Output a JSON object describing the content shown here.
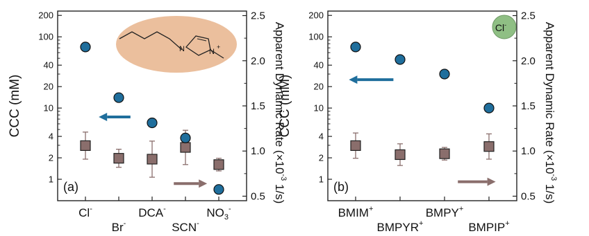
{
  "colors": {
    "ccc_fill": "#1f6e9c",
    "rate_fill": "#8a6e6c",
    "ccc_arrow": "#1f6e9c",
    "rate_arrow": "#8a6e6c",
    "inset_cation": "#e8b48c",
    "inset_anion": "#8fbf84"
  },
  "chart_data": [
    {
      "type": "scatter",
      "panel_label": "(a)",
      "categories": [
        {
          "base": "Cl",
          "sup": "-",
          "sub": ""
        },
        {
          "base": "Br",
          "sup": "-",
          "sub": ""
        },
        {
          "base": "DCA",
          "sup": "-",
          "sub": ""
        },
        {
          "base": "SCN",
          "sup": "-",
          "sub": ""
        },
        {
          "base": "NO",
          "sup": "-",
          "sub": "3"
        }
      ],
      "label_rows": [
        0,
        1,
        0,
        1,
        0
      ],
      "ylabel_left": "CCC (mM)",
      "ylabel_right": {
        "base": "Apparent Dynamic Rate (×10",
        "sup": "-3",
        "tail": " 1/s)"
      },
      "left_axis": {
        "scale": "log",
        "ylim": [
          0.5,
          230
        ],
        "ticks": [
          1,
          2,
          4,
          10,
          20,
          40,
          100,
          200
        ],
        "tick_labels": [
          "1",
          "2",
          "4",
          "10",
          "20",
          "40",
          "100",
          "200"
        ]
      },
      "right_axis": {
        "scale": "linear",
        "ylim": [
          0.45,
          2.55
        ],
        "ticks": [
          0.5,
          1.0,
          1.5,
          2.0,
          2.5
        ],
        "tick_labels": [
          "0.5",
          "1.0",
          "1.5",
          "2.0",
          "2.5"
        ]
      },
      "series": [
        {
          "marker": "circle",
          "axis": "left",
          "values": [
            72,
            14,
            6.2,
            3.8,
            0.72
          ]
        },
        {
          "marker": "square",
          "axis": "right",
          "values": [
            1.06,
            0.92,
            0.91,
            1.04,
            0.85
          ],
          "error": [
            0.15,
            0.1,
            0.2,
            0.19,
            0.07
          ]
        }
      ],
      "arrows": [
        {
          "axis": "left",
          "direction": "left",
          "value": 7.5,
          "x_from": 1.35,
          "x_to": 0.4
        },
        {
          "axis": "right",
          "direction": "right",
          "value": 0.64,
          "x_from": 2.65,
          "x_to": 3.65
        }
      ],
      "inset": {
        "type": "cation"
      }
    },
    {
      "type": "scatter",
      "panel_label": "(b)",
      "categories": [
        {
          "base": "BMIM",
          "sup": "+",
          "sub": ""
        },
        {
          "base": "BMPYR",
          "sup": "+",
          "sub": ""
        },
        {
          "base": "BMPY",
          "sup": "+",
          "sub": ""
        },
        {
          "base": "BMPIP",
          "sup": "+",
          "sub": ""
        }
      ],
      "label_rows": [
        0,
        1,
        0,
        1
      ],
      "ylabel_left": "CCC (mM)",
      "ylabel_right": {
        "base": "Apparent Dynamic Rate (×10",
        "sup": "-3",
        "tail": " 1/s)"
      },
      "left_axis": {
        "scale": "log",
        "ylim": [
          0.5,
          230
        ],
        "ticks": [
          1,
          2,
          4,
          10,
          20,
          40,
          100,
          200
        ],
        "tick_labels": [
          "1",
          "2",
          "4",
          "10",
          "20",
          "40",
          "100",
          "200"
        ]
      },
      "right_axis": {
        "scale": "linear",
        "ylim": [
          0.45,
          2.55
        ],
        "ticks": [
          0.5,
          1.0,
          1.5,
          2.0,
          2.5
        ],
        "tick_labels": [
          "0.5",
          "1.0",
          "1.5",
          "2.0",
          "2.5"
        ]
      },
      "series": [
        {
          "marker": "circle",
          "axis": "left",
          "values": [
            72,
            48,
            30,
            10
          ]
        },
        {
          "marker": "square",
          "axis": "right",
          "values": [
            1.06,
            0.96,
            0.97,
            1.05
          ],
          "error": [
            0.14,
            0.12,
            0.07,
            0.14
          ]
        }
      ],
      "arrows": [
        {
          "axis": "left",
          "direction": "left",
          "value": 25,
          "x_from": 0.85,
          "x_to": -0.15
        },
        {
          "axis": "right",
          "direction": "right",
          "value": 0.66,
          "x_from": 2.3,
          "x_to": 3.15
        }
      ],
      "inset": {
        "type": "anion",
        "label": {
          "base": "Cl",
          "sup": "-"
        }
      }
    }
  ]
}
